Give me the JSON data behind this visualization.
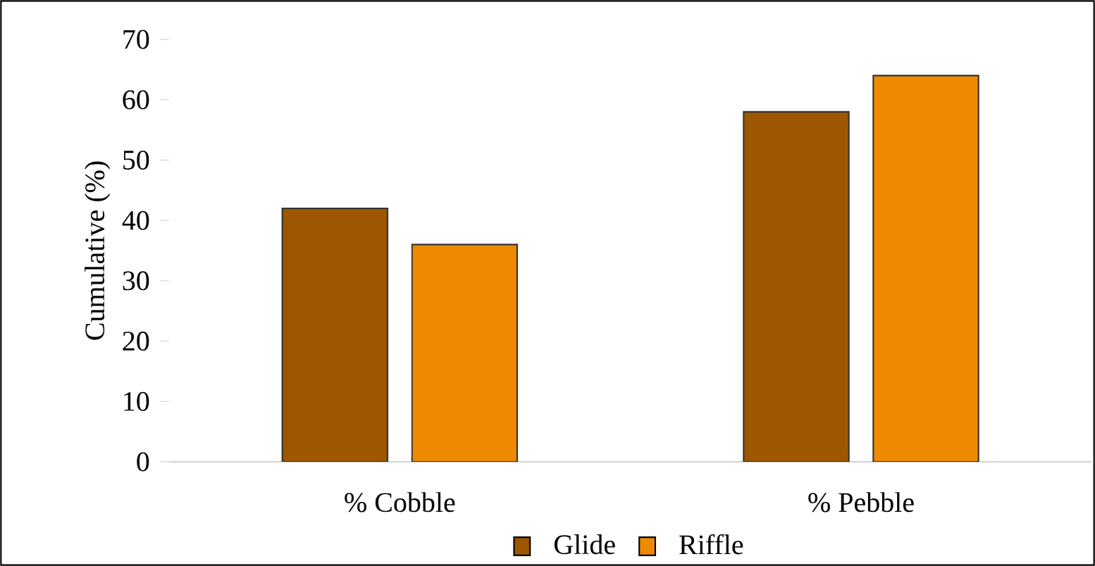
{
  "chart_data": {
    "type": "bar",
    "ylabel": "Cumulative (%)",
    "categories": [
      "% Cobble",
      "% Pebble"
    ],
    "series": [
      {
        "name": "Glide",
        "color": "#9c5700",
        "values": [
          42,
          58
        ]
      },
      {
        "name": "Riffle",
        "color": "#ed8a00",
        "values": [
          36,
          64
        ]
      }
    ],
    "ylim": [
      0,
      70
    ],
    "yticks": [
      0,
      10,
      20,
      30,
      40,
      50,
      60,
      70
    ],
    "grid": false,
    "legend": "bottom"
  }
}
